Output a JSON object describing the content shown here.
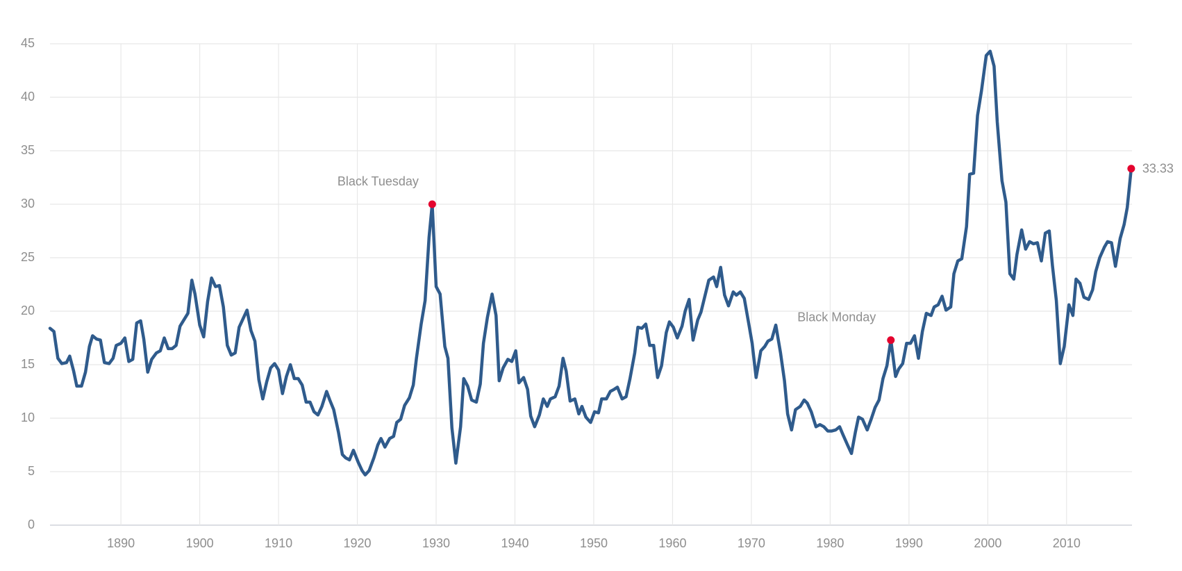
{
  "chart_data": {
    "type": "line",
    "color": "#2f5b8c",
    "marker_color": "#e4032e",
    "grid": true,
    "xlim": [
      1881,
      2018.3
    ],
    "ylim": [
      0,
      45
    ],
    "xticks": [
      1890,
      1900,
      1910,
      1920,
      1930,
      1940,
      1950,
      1960,
      1970,
      1980,
      1990,
      2000,
      2010
    ],
    "yticks": [
      0,
      5,
      10,
      15,
      20,
      25,
      30,
      35,
      40,
      45
    ],
    "x": [
      1881.0,
      1881.5,
      1882.0,
      1882.5,
      1883.1,
      1883.5,
      1884.0,
      1884.4,
      1885.0,
      1885.5,
      1886.0,
      1886.4,
      1886.9,
      1887.4,
      1887.9,
      1888.5,
      1889.0,
      1889.4,
      1890.0,
      1890.5,
      1891.0,
      1891.5,
      1892.0,
      1892.5,
      1892.9,
      1893.4,
      1893.9,
      1894.5,
      1895.0,
      1895.5,
      1896.0,
      1896.5,
      1897.0,
      1897.5,
      1898.0,
      1898.5,
      1899.0,
      1899.4,
      1900.0,
      1900.5,
      1901.0,
      1901.5,
      1902.0,
      1902.5,
      1903.0,
      1903.5,
      1904.0,
      1904.5,
      1905.0,
      1905.5,
      1906.0,
      1906.5,
      1907.0,
      1907.5,
      1908.0,
      1908.5,
      1909.0,
      1909.5,
      1910.0,
      1910.5,
      1911.0,
      1911.5,
      1912.0,
      1912.5,
      1913.0,
      1913.5,
      1914.0,
      1914.5,
      1915.0,
      1915.5,
      1916.1,
      1916.5,
      1917.0,
      1917.6,
      1918.1,
      1918.5,
      1919.0,
      1919.5,
      1920.1,
      1920.6,
      1921.0,
      1921.5,
      1922.1,
      1922.6,
      1923.0,
      1923.5,
      1924.1,
      1924.6,
      1925.0,
      1925.5,
      1926.0,
      1926.6,
      1927.1,
      1927.5,
      1928.1,
      1928.6,
      1929.1,
      1929.5,
      1930.0,
      1930.5,
      1931.1,
      1931.5,
      1932.0,
      1932.5,
      1933.1,
      1933.5,
      1934.0,
      1934.5,
      1935.1,
      1935.6,
      1936.0,
      1936.5,
      1937.1,
      1937.6,
      1938.0,
      1938.5,
      1939.1,
      1939.6,
      1940.1,
      1940.5,
      1941.1,
      1941.6,
      1942.0,
      1942.5,
      1943.1,
      1943.6,
      1944.1,
      1944.5,
      1945.1,
      1945.6,
      1946.1,
      1946.5,
      1947.0,
      1947.6,
      1948.1,
      1948.5,
      1949.0,
      1949.6,
      1950.1,
      1950.6,
      1951.0,
      1951.6,
      1952.1,
      1952.6,
      1953.0,
      1953.6,
      1954.1,
      1954.6,
      1955.2,
      1955.6,
      1956.1,
      1956.6,
      1957.1,
      1957.6,
      1958.1,
      1958.6,
      1959.2,
      1959.6,
      1960.1,
      1960.6,
      1961.2,
      1961.6,
      1962.1,
      1962.6,
      1963.2,
      1963.6,
      1964.1,
      1964.6,
      1965.2,
      1965.6,
      1966.1,
      1966.6,
      1967.1,
      1967.7,
      1968.1,
      1968.6,
      1969.1,
      1969.7,
      1970.1,
      1970.6,
      1971.2,
      1971.7,
      1972.1,
      1972.6,
      1973.1,
      1973.7,
      1974.2,
      1974.6,
      1975.1,
      1975.6,
      1976.2,
      1976.7,
      1977.1,
      1977.6,
      1978.2,
      1978.7,
      1979.2,
      1979.7,
      1980.2,
      1980.7,
      1981.2,
      1981.6,
      1982.2,
      1982.7,
      1983.2,
      1983.6,
      1984.1,
      1984.7,
      1985.2,
      1985.7,
      1986.2,
      1986.7,
      1987.2,
      1987.7,
      1988.3,
      1988.7,
      1989.2,
      1989.7,
      1990.2,
      1990.7,
      1991.2,
      1991.7,
      1992.2,
      1992.8,
      1993.2,
      1993.7,
      1994.2,
      1994.7,
      1995.3,
      1995.7,
      1996.2,
      1996.7,
      1997.3,
      1997.7,
      1998.2,
      1998.7,
      1999.2,
      1999.8,
      2000.3,
      2000.8,
      2001.2,
      2001.8,
      2002.3,
      2002.8,
      2003.3,
      2003.7,
      2004.3,
      2004.8,
      2005.3,
      2005.8,
      2006.3,
      2006.8,
      2007.3,
      2007.8,
      2008.2,
      2008.7,
      2009.2,
      2009.7,
      2010.3,
      2010.8,
      2011.2,
      2011.7,
      2012.2,
      2012.8,
      2013.3,
      2013.7,
      2014.2,
      2014.8,
      2015.2,
      2015.7,
      2016.2,
      2016.8,
      2017.3,
      2017.7,
      2018.2
    ],
    "values": [
      18.4,
      18.1,
      15.6,
      15.1,
      15.2,
      15.8,
      14.4,
      13.0,
      13.0,
      14.3,
      16.7,
      17.7,
      17.4,
      17.3,
      15.2,
      15.1,
      15.6,
      16.8,
      17.0,
      17.5,
      15.3,
      15.5,
      18.9,
      19.1,
      17.4,
      14.3,
      15.5,
      16.1,
      16.3,
      17.5,
      16.5,
      16.5,
      16.8,
      18.6,
      19.2,
      19.8,
      22.9,
      21.6,
      18.7,
      17.6,
      20.9,
      23.1,
      22.3,
      22.4,
      20.4,
      16.8,
      15.9,
      16.1,
      18.5,
      19.3,
      20.1,
      18.2,
      17.2,
      13.6,
      11.8,
      13.4,
      14.7,
      15.1,
      14.5,
      12.3,
      13.9,
      15.0,
      13.7,
      13.7,
      13.1,
      11.5,
      11.5,
      10.6,
      10.3,
      11.1,
      12.5,
      11.7,
      10.8,
      8.7,
      6.6,
      6.3,
      6.1,
      7.0,
      5.9,
      5.1,
      4.7,
      5.1,
      6.3,
      7.5,
      8.1,
      7.3,
      8.1,
      8.3,
      9.6,
      9.9,
      11.2,
      11.9,
      13.1,
      15.6,
      18.8,
      21.0,
      26.9,
      30.0,
      22.3,
      21.6,
      16.7,
      15.6,
      9.1,
      5.8,
      9.2,
      13.7,
      13.0,
      11.7,
      11.5,
      13.2,
      17.0,
      19.4,
      21.6,
      19.6,
      13.5,
      14.7,
      15.5,
      15.3,
      16.3,
      13.3,
      13.8,
      12.7,
      10.2,
      9.2,
      10.3,
      11.8,
      11.1,
      11.8,
      12.0,
      13.0,
      15.6,
      14.4,
      11.6,
      11.8,
      10.4,
      11.1,
      10.1,
      9.6,
      10.6,
      10.5,
      11.8,
      11.8,
      12.5,
      12.7,
      12.9,
      11.8,
      12.0,
      13.7,
      16.1,
      18.5,
      18.4,
      18.8,
      16.8,
      16.8,
      13.8,
      14.9,
      18.0,
      19.0,
      18.5,
      17.5,
      18.6,
      20.0,
      21.1,
      17.3,
      19.2,
      19.9,
      21.4,
      22.9,
      23.2,
      22.3,
      24.1,
      21.5,
      20.5,
      21.8,
      21.5,
      21.8,
      21.2,
      18.7,
      17.0,
      13.8,
      16.3,
      16.7,
      17.2,
      17.4,
      18.7,
      16.1,
      13.5,
      10.4,
      8.9,
      10.8,
      11.1,
      11.7,
      11.4,
      10.6,
      9.2,
      9.4,
      9.2,
      8.8,
      8.8,
      8.9,
      9.2,
      8.5,
      7.5,
      6.7,
      8.7,
      10.1,
      9.9,
      8.9,
      9.9,
      11.0,
      11.7,
      13.7,
      14.9,
      17.3,
      13.9,
      14.6,
      15.1,
      17.0,
      17.0,
      17.7,
      15.6,
      18.1,
      19.8,
      19.6,
      20.4,
      20.6,
      21.4,
      20.1,
      20.4,
      23.5,
      24.7,
      24.9,
      27.9,
      32.8,
      32.9,
      38.3,
      40.6,
      43.9,
      44.3,
      42.9,
      37.7,
      32.2,
      30.2,
      23.5,
      23.0,
      25.3,
      27.6,
      25.8,
      26.5,
      26.3,
      26.4,
      24.7,
      27.3,
      27.5,
      24.3,
      21.0,
      15.1,
      16.7,
      20.6,
      19.6,
      23.0,
      22.6,
      21.3,
      21.1,
      22.0,
      23.7,
      25.0,
      26.0,
      26.5,
      26.4,
      24.2,
      26.8,
      28.1,
      29.7,
      33.33
    ],
    "annotations": [
      {
        "label": "Black Tuesday",
        "x": 1929.5,
        "y": 30.0
      },
      {
        "label": "Black Monday",
        "x": 1987.7,
        "y": 17.3
      },
      {
        "label": "33.33",
        "x": 2018.2,
        "y": 33.33
      }
    ]
  }
}
